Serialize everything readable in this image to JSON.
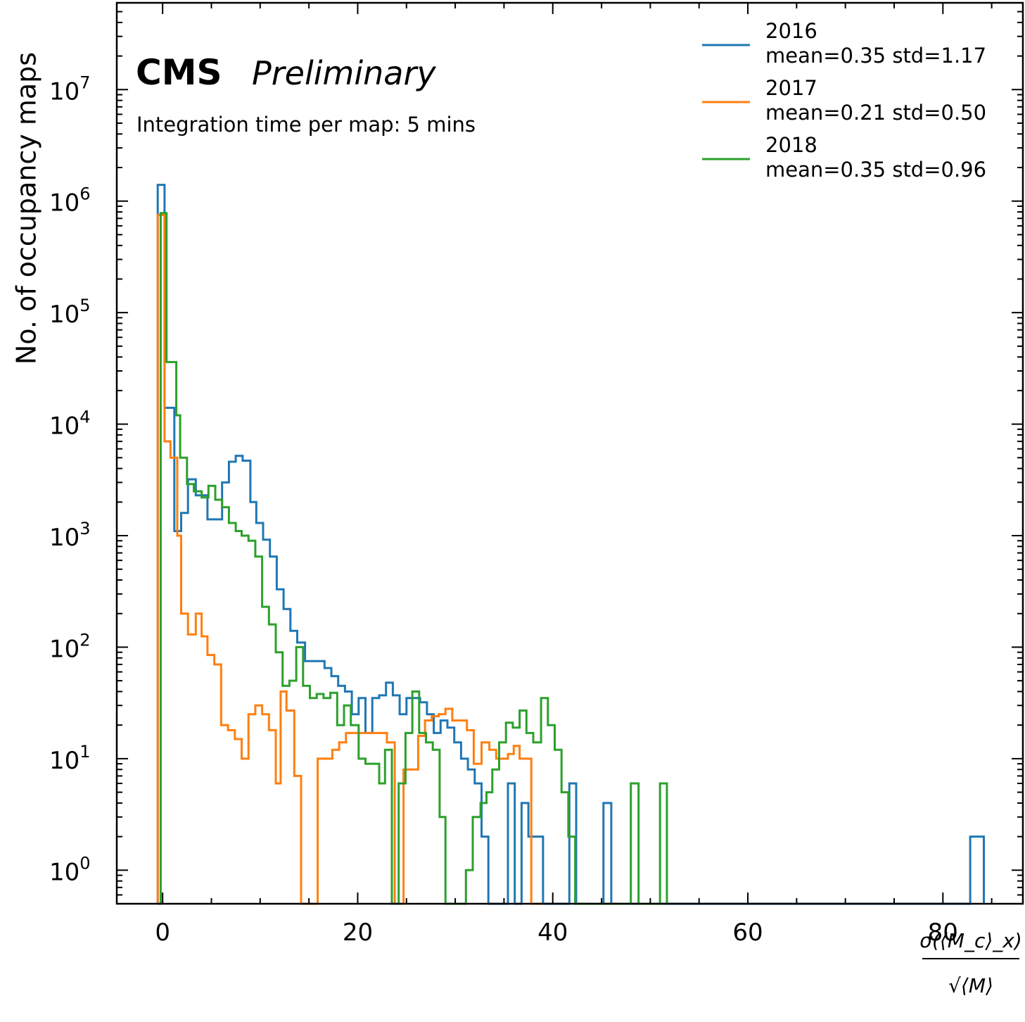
{
  "chart_data": {
    "type": "histogram-step",
    "title": "CMS",
    "title_suffix": "Preliminary",
    "subtitle": "Integration time per map: 5 mins",
    "ylabel": "No. of occupancy maps",
    "xlabel_num": "σ(⟨M_c⟩_x)",
    "xlabel_den": "√⟨M⟩",
    "xlim": [
      -4.7,
      88.2
    ],
    "ylim": [
      0.5,
      60000000
    ],
    "yscale": "log",
    "xticks": [
      0,
      20,
      40,
      60,
      80
    ],
    "yticks": [
      {
        "value": 1,
        "exp": "0"
      },
      {
        "value": 10,
        "exp": "1"
      },
      {
        "value": 100,
        "exp": "2"
      },
      {
        "value": 1000,
        "exp": "3"
      },
      {
        "value": 10000,
        "exp": "4"
      },
      {
        "value": 100000,
        "exp": "5"
      },
      {
        "value": 1000000,
        "exp": "6"
      },
      {
        "value": 10000000,
        "exp": "7"
      }
    ],
    "legend_position": "top-right",
    "series": [
      {
        "name": "2016",
        "stats": "mean=0.35 std=1.17",
        "color": "#1f77b4",
        "points": [
          [
            -0.5,
            1400000
          ],
          [
            0.2,
            14000
          ],
          [
            1.2,
            1100
          ],
          [
            1.9,
            1600
          ],
          [
            2.6,
            3200
          ],
          [
            3.4,
            2300
          ],
          [
            4.6,
            1400
          ],
          [
            5.9,
            1400
          ],
          [
            6.1,
            3000
          ],
          [
            6.8,
            4600
          ],
          [
            7.5,
            5200
          ],
          [
            8.2,
            4700
          ],
          [
            9.0,
            2000
          ],
          [
            9.6,
            1300
          ],
          [
            10.3,
            920
          ],
          [
            11.0,
            650
          ],
          [
            11.7,
            330
          ],
          [
            12.4,
            220
          ],
          [
            13.1,
            140
          ],
          [
            13.8,
            110
          ],
          [
            14.6,
            75
          ],
          [
            15.9,
            75
          ],
          [
            16.6,
            65
          ],
          [
            17.3,
            55
          ],
          [
            18.0,
            45
          ],
          [
            18.7,
            40
          ],
          [
            19.4,
            25
          ],
          [
            20.1,
            35
          ],
          [
            20.8,
            17
          ],
          [
            21.5,
            35
          ],
          [
            22.2,
            37
          ],
          [
            22.9,
            48
          ],
          [
            23.6,
            37
          ],
          [
            24.3,
            25
          ],
          [
            25.0,
            35
          ],
          [
            26.4,
            32
          ],
          [
            27.1,
            25
          ],
          [
            27.8,
            17
          ],
          [
            28.5,
            22
          ],
          [
            29.2,
            19
          ],
          [
            29.9,
            14
          ],
          [
            30.6,
            10
          ],
          [
            31.3,
            8
          ],
          [
            32.0,
            6
          ],
          [
            32.7,
            2
          ],
          [
            33.4,
            0
          ],
          [
            35.4,
            6
          ],
          [
            36.1,
            0
          ],
          [
            36.8,
            4
          ],
          [
            37.5,
            2
          ],
          [
            39.0,
            0
          ],
          [
            41.7,
            6
          ],
          [
            42.4,
            0
          ],
          [
            45.2,
            4
          ],
          [
            46.0,
            0
          ],
          [
            82.8,
            2
          ],
          [
            84.2,
            0
          ]
        ]
      },
      {
        "name": "2017",
        "stats": "mean=0.21 std=0.50",
        "color": "#ff7f0e",
        "points": [
          [
            -0.5,
            750000
          ],
          [
            0.2,
            7000
          ],
          [
            0.8,
            5000
          ],
          [
            1.5,
            1000
          ],
          [
            1.9,
            200
          ],
          [
            2.6,
            130
          ],
          [
            3.4,
            200
          ],
          [
            4.0,
            125
          ],
          [
            4.6,
            85
          ],
          [
            5.3,
            70
          ],
          [
            6.0,
            20
          ],
          [
            6.7,
            18
          ],
          [
            7.4,
            15
          ],
          [
            8.1,
            10
          ],
          [
            8.8,
            25
          ],
          [
            9.5,
            30
          ],
          [
            10.2,
            25
          ],
          [
            10.9,
            18
          ],
          [
            11.6,
            6
          ],
          [
            12.1,
            40
          ],
          [
            12.7,
            27
          ],
          [
            13.5,
            7
          ],
          [
            14.2,
            0.5
          ],
          [
            15.6,
            0
          ],
          [
            15.9,
            10
          ],
          [
            17.4,
            12
          ],
          [
            18.1,
            14
          ],
          [
            18.8,
            17
          ],
          [
            19.5,
            17
          ],
          [
            20.2,
            17
          ],
          [
            20.9,
            17
          ],
          [
            21.6,
            17
          ],
          [
            22.3,
            17
          ],
          [
            23.0,
            14
          ],
          [
            23.8,
            0.5
          ],
          [
            24.3,
            0
          ],
          [
            24.7,
            8
          ],
          [
            25.5,
            8
          ],
          [
            26.2,
            16
          ],
          [
            26.9,
            22
          ],
          [
            27.6,
            24
          ],
          [
            28.3,
            25
          ],
          [
            29.0,
            28
          ],
          [
            29.7,
            22
          ],
          [
            31.2,
            18
          ],
          [
            31.9,
            9
          ],
          [
            32.7,
            14
          ],
          [
            33.5,
            12
          ],
          [
            34.2,
            10
          ],
          [
            35.4,
            11
          ],
          [
            36.0,
            13
          ],
          [
            36.6,
            10
          ],
          [
            37.2,
            10
          ],
          [
            37.8,
            0.5
          ],
          [
            39.0,
            0
          ]
        ]
      },
      {
        "name": "2018",
        "stats": "mean=0.35 std=0.96",
        "color": "#2ca02c",
        "points": [
          [
            -0.5,
            0.5
          ],
          [
            -0.2,
            780000
          ],
          [
            0.4,
            36000
          ],
          [
            1.4,
            12000
          ],
          [
            1.8,
            5000
          ],
          [
            2.5,
            2900
          ],
          [
            3.2,
            2500
          ],
          [
            4.0,
            2200
          ],
          [
            4.7,
            2800
          ],
          [
            5.4,
            2100
          ],
          [
            6.1,
            1800
          ],
          [
            6.8,
            1300
          ],
          [
            7.5,
            1100
          ],
          [
            8.1,
            1000
          ],
          [
            8.8,
            900
          ],
          [
            9.5,
            650
          ],
          [
            10.2,
            230
          ],
          [
            10.9,
            160
          ],
          [
            11.6,
            90
          ],
          [
            12.3,
            45
          ],
          [
            13.0,
            50
          ],
          [
            13.7,
            100
          ],
          [
            14.4,
            45
          ],
          [
            15.1,
            35
          ],
          [
            15.8,
            38
          ],
          [
            16.5,
            35
          ],
          [
            17.2,
            39
          ],
          [
            17.9,
            20
          ],
          [
            18.6,
            30
          ],
          [
            19.3,
            20
          ],
          [
            20.1,
            10
          ],
          [
            20.8,
            9
          ],
          [
            21.5,
            9
          ],
          [
            22.2,
            6
          ],
          [
            22.8,
            12
          ],
          [
            23.5,
            0.5
          ],
          [
            24.2,
            6
          ],
          [
            24.9,
            17
          ],
          [
            25.6,
            40
          ],
          [
            26.3,
            17
          ],
          [
            27.0,
            14
          ],
          [
            27.7,
            12
          ],
          [
            28.4,
            3
          ],
          [
            29.0,
            0.5
          ],
          [
            30.4,
            0
          ],
          [
            31.1,
            1
          ],
          [
            31.8,
            3
          ],
          [
            32.6,
            4
          ],
          [
            33.2,
            5
          ],
          [
            33.8,
            8
          ],
          [
            34.5,
            14
          ],
          [
            35.2,
            21
          ],
          [
            35.9,
            19
          ],
          [
            36.6,
            27
          ],
          [
            37.3,
            17
          ],
          [
            38.0,
            14
          ],
          [
            38.8,
            35
          ],
          [
            39.5,
            20
          ],
          [
            40.2,
            12
          ],
          [
            40.9,
            5
          ],
          [
            41.6,
            2
          ],
          [
            42.3,
            0.5
          ],
          [
            43.0,
            0
          ],
          [
            46.0,
            0
          ],
          [
            48.0,
            6
          ],
          [
            48.8,
            0
          ],
          [
            51.0,
            6
          ],
          [
            51.7,
            0
          ]
        ]
      }
    ]
  }
}
